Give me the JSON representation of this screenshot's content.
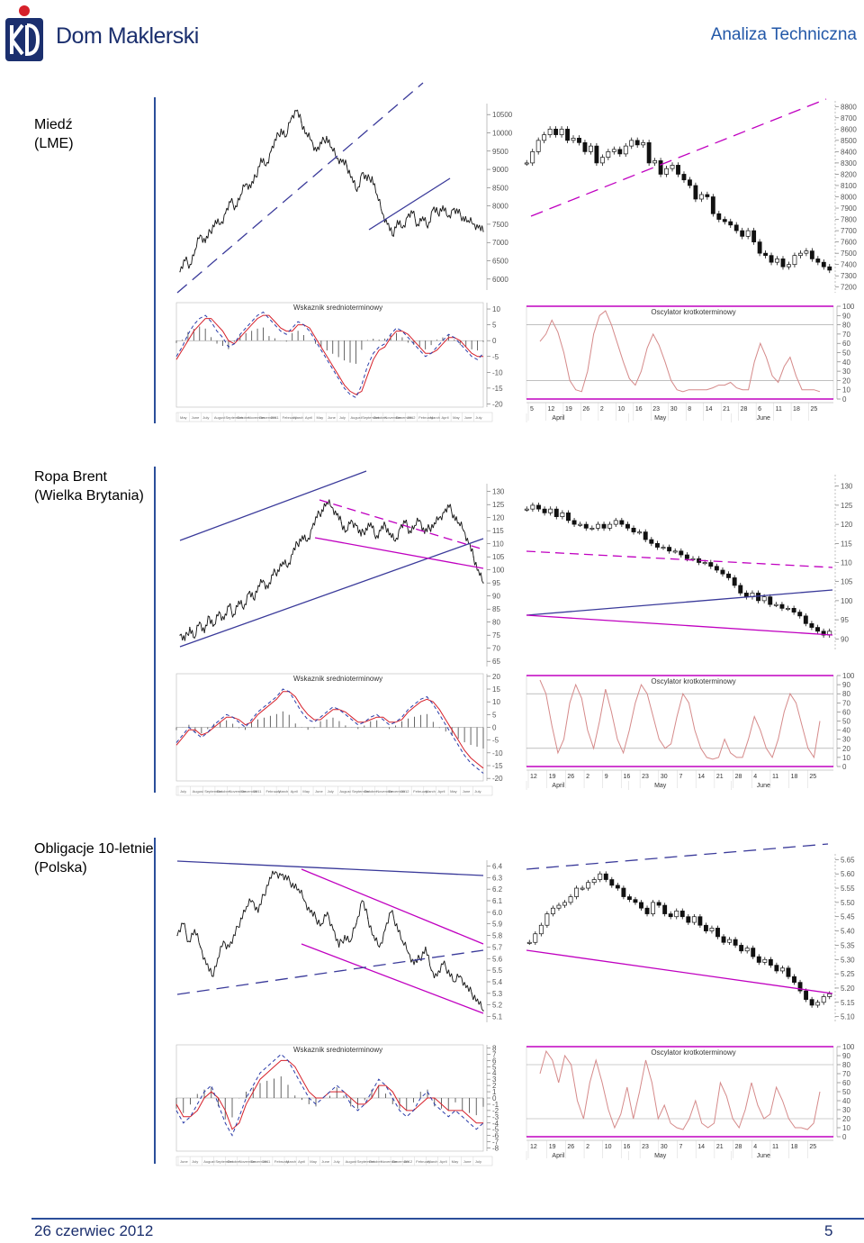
{
  "header": {
    "brand": "Dom Maklerski",
    "section_title": "Analiza Techniczna"
  },
  "footer": {
    "date": "26 czerwiec 2012",
    "page": "5"
  },
  "colors": {
    "brand_blue": "#1b2f6e",
    "accent_red": "#d6202a",
    "magenta": "#c000c0",
    "trend_blue": "#3a3a9a"
  },
  "panel_titles": {
    "macd": "Wskaznik srednioterminowy",
    "stoch": "Oscylator krotkoterminowy"
  },
  "chart_data": [
    {
      "type": "line",
      "name": "copper-long",
      "instrument": "Miedź",
      "instrument_sub": "(LME)",
      "ylim": [
        5700,
        10800
      ],
      "y_ticks": [
        "10500",
        "10000",
        "9500",
        "9000",
        "8500",
        "8000",
        "7500",
        "7000",
        "6500",
        "6000"
      ],
      "y_tick_values": [
        10500,
        10000,
        9500,
        9000,
        8500,
        8000,
        7500,
        7000,
        6500,
        6000
      ],
      "points": [
        6200,
        6500,
        6400,
        6800,
        7200,
        7000,
        7300,
        7600,
        7500,
        7800,
        8100,
        8000,
        8300,
        8600,
        8500,
        8800,
        9300,
        9100,
        9500,
        9800,
        10100,
        9900,
        10400,
        10600,
        10300,
        10000,
        9800,
        9500,
        9700,
        9900,
        9600,
        9300,
        9200,
        9100,
        8800,
        8400,
        8900,
        8700,
        8800,
        8300,
        7800,
        7500,
        7200,
        7600,
        7400,
        7700,
        7800,
        7500,
        7700,
        7400,
        7900,
        7800,
        8000,
        7700,
        7900,
        7800,
        7700,
        7600,
        7500,
        7400,
        7300
      ]
    },
    {
      "type": "candlestick",
      "name": "copper-short",
      "ylim": [
        7150,
        8850
      ],
      "y_ticks": [
        "8800",
        "8700",
        "8600",
        "8500",
        "8400",
        "8300",
        "8200",
        "8100",
        "8000",
        "7900",
        "7800",
        "7700",
        "7600",
        "7500",
        "7400",
        "7300",
        "7200"
      ],
      "y_tick_values": [
        8800,
        8700,
        8600,
        8500,
        8400,
        8300,
        8200,
        8100,
        8000,
        7900,
        7800,
        7700,
        7600,
        7500,
        7400,
        7300,
        7200
      ],
      "closes": [
        8300,
        8400,
        8500,
        8550,
        8600,
        8550,
        8600,
        8500,
        8520,
        8480,
        8400,
        8450,
        8300,
        8350,
        8400,
        8420,
        8380,
        8450,
        8500,
        8460,
        8480,
        8300,
        8320,
        8200,
        8250,
        8280,
        8200,
        8150,
        8100,
        7980,
        8020,
        8000,
        7850,
        7800,
        7780,
        7750,
        7700,
        7650,
        7700,
        7600,
        7500,
        7480,
        7420,
        7450,
        7380,
        7400,
        7480,
        7500,
        7520,
        7450,
        7420,
        7380,
        7350
      ]
    },
    {
      "type": "line",
      "name": "copper-macd",
      "ylim": [
        -21,
        12
      ],
      "y_ticks": [
        "10",
        "5",
        "0",
        "-5",
        "-10",
        "-15",
        "-20"
      ],
      "y_tick_values": [
        10,
        5,
        0,
        -5,
        -10,
        -15,
        -20
      ],
      "x_ticks": [
        "May",
        "June",
        "July",
        "August",
        "September",
        "October",
        "November",
        "December",
        "2011",
        "February",
        "March",
        "April",
        "May",
        "June",
        "July",
        "August",
        "September",
        "October",
        "November",
        "December",
        "2012",
        "February",
        "March",
        "April",
        "May",
        "June",
        "July"
      ],
      "macd": [
        -5,
        -2,
        2,
        5,
        7,
        8,
        6,
        3,
        1,
        -2,
        -1,
        2,
        4,
        6,
        8,
        9,
        7,
        5,
        3,
        2,
        4,
        6,
        5,
        3,
        0,
        -3,
        -6,
        -9,
        -12,
        -15,
        -17,
        -18,
        -14,
        -8,
        -4,
        -2,
        -1,
        2,
        4,
        3,
        1,
        -1,
        -3,
        -5,
        -4,
        -2,
        0,
        2,
        1,
        -1,
        -3,
        -5,
        -6,
        -4
      ],
      "signal": [
        -6,
        -3,
        0,
        3,
        5,
        7,
        7,
        5,
        3,
        0,
        -1,
        1,
        3,
        5,
        7,
        8,
        8,
        6,
        4,
        3,
        3,
        5,
        5,
        4,
        1,
        -2,
        -5,
        -8,
        -11,
        -14,
        -16,
        -17,
        -16,
        -11,
        -6,
        -3,
        -2,
        1,
        3,
        3,
        2,
        0,
        -2,
        -4,
        -4,
        -3,
        -1,
        1,
        1,
        0,
        -2,
        -4,
        -5,
        -5
      ]
    },
    {
      "type": "line",
      "name": "copper-stoch",
      "ylim": [
        0,
        100
      ],
      "y_ticks": [
        "100",
        "90",
        "80",
        "70",
        "60",
        "50",
        "40",
        "30",
        "20",
        "10",
        "0"
      ],
      "y_tick_values": [
        100,
        90,
        80,
        70,
        60,
        50,
        40,
        30,
        20,
        10,
        0
      ],
      "x_ticks": [
        "5",
        "12",
        "19",
        "26",
        "2",
        "10",
        "16",
        "23",
        "30",
        "8",
        "14",
        "21",
        "28",
        "6",
        "11",
        "18",
        "25"
      ],
      "month_labels": [
        "April",
        "May",
        "June"
      ],
      "points": [
        62,
        70,
        85,
        72,
        50,
        20,
        10,
        8,
        30,
        70,
        90,
        95,
        80,
        60,
        40,
        22,
        15,
        30,
        55,
        70,
        58,
        40,
        20,
        10,
        8,
        10,
        10,
        10,
        10,
        12,
        15,
        15,
        18,
        12,
        10,
        10,
        40,
        60,
        45,
        25,
        18,
        35,
        45,
        25,
        10,
        10,
        10,
        8
      ]
    },
    {
      "type": "line",
      "name": "brent-long",
      "instrument": "Ropa Brent",
      "instrument_sub": "(Wielka Brytania)",
      "ylim": [
        63,
        133
      ],
      "y_ticks": [
        "130",
        "125",
        "120",
        "115",
        "110",
        "105",
        "100",
        "95",
        "90",
        "85",
        "80",
        "75",
        "70",
        "65"
      ],
      "y_tick_values": [
        130,
        125,
        120,
        115,
        110,
        105,
        100,
        95,
        90,
        85,
        80,
        75,
        70,
        65
      ],
      "points": [
        75,
        73,
        78,
        74,
        80,
        76,
        82,
        79,
        84,
        81,
        86,
        83,
        88,
        85,
        91,
        89,
        94,
        96,
        93,
        98,
        100,
        103,
        101,
        106,
        110,
        113,
        111,
        116,
        120,
        123,
        126,
        124,
        121,
        118,
        115,
        119,
        117,
        113,
        116,
        118,
        112,
        115,
        117,
        114,
        111,
        116,
        118,
        115,
        117,
        119,
        114,
        116,
        118,
        120,
        122,
        124,
        121,
        118,
        115,
        110,
        105,
        100,
        95
      ]
    },
    {
      "type": "candlestick",
      "name": "brent-short",
      "ylim": [
        87,
        133
      ],
      "y_ticks": [
        "130",
        "125",
        "120",
        "115",
        "110",
        "105",
        "100",
        "95",
        "90"
      ],
      "y_tick_values": [
        130,
        125,
        120,
        115,
        110,
        105,
        100,
        95,
        90
      ],
      "closes": [
        124,
        125,
        124,
        123,
        124,
        122,
        123,
        121,
        120,
        120,
        119,
        119,
        120,
        119,
        120,
        121,
        120,
        119,
        118,
        118,
        116,
        115,
        114,
        114,
        113,
        113,
        112,
        111,
        111,
        110,
        110,
        109,
        108,
        107,
        106,
        104,
        102,
        101,
        102,
        100,
        101,
        99,
        99,
        98,
        98,
        97,
        96,
        94,
        93,
        92,
        91,
        92
      ]
    },
    {
      "type": "line",
      "name": "brent-macd",
      "ylim": [
        -21,
        21
      ],
      "y_ticks": [
        "20",
        "15",
        "10",
        "5",
        "0",
        "-5",
        "-10",
        "-15",
        "-20"
      ],
      "y_tick_values": [
        20,
        15,
        10,
        5,
        0,
        -5,
        -10,
        -15,
        -20
      ],
      "x_ticks": [
        "July",
        "August",
        "September",
        "October",
        "November",
        "December",
        "2011",
        "February",
        "March",
        "April",
        "May",
        "June",
        "July",
        "August",
        "September",
        "October",
        "November",
        "December",
        "2012",
        "February",
        "March",
        "April",
        "May",
        "June",
        "July"
      ],
      "macd": [
        -6,
        -3,
        0,
        -2,
        -4,
        -2,
        1,
        3,
        5,
        4,
        2,
        0,
        3,
        6,
        8,
        10,
        12,
        15,
        14,
        10,
        6,
        3,
        2,
        4,
        6,
        8,
        7,
        5,
        3,
        1,
        2,
        4,
        5,
        3,
        1,
        2,
        4,
        7,
        9,
        11,
        12,
        9,
        5,
        1,
        -3,
        -7,
        -11,
        -14,
        -16,
        -18
      ],
      "signal": [
        -7,
        -4,
        -1,
        -1,
        -3,
        -2,
        0,
        2,
        4,
        4,
        3,
        1,
        2,
        5,
        7,
        9,
        11,
        14,
        14,
        12,
        8,
        5,
        3,
        3,
        5,
        7,
        7,
        6,
        4,
        2,
        2,
        3,
        4,
        4,
        2,
        2,
        3,
        6,
        8,
        10,
        11,
        10,
        7,
        3,
        -1,
        -5,
        -9,
        -12,
        -14,
        -16
      ]
    },
    {
      "type": "line",
      "name": "brent-stoch",
      "ylim": [
        0,
        100
      ],
      "y_ticks": [
        "100",
        "90",
        "80",
        "70",
        "60",
        "50",
        "40",
        "30",
        "20",
        "10",
        "0"
      ],
      "y_tick_values": [
        100,
        90,
        80,
        70,
        60,
        50,
        40,
        30,
        20,
        10,
        0
      ],
      "x_ticks": [
        "12",
        "19",
        "26",
        "2",
        "9",
        "16",
        "23",
        "30",
        "7",
        "14",
        "21",
        "28",
        "4",
        "11",
        "18",
        "25"
      ],
      "month_labels": [
        "April",
        "May",
        "June"
      ],
      "points": [
        95,
        80,
        45,
        15,
        30,
        70,
        90,
        75,
        40,
        20,
        50,
        85,
        60,
        30,
        15,
        40,
        70,
        90,
        80,
        55,
        30,
        20,
        25,
        55,
        80,
        70,
        40,
        20,
        10,
        8,
        10,
        30,
        15,
        10,
        10,
        30,
        55,
        40,
        20,
        10,
        30,
        60,
        80,
        70,
        45,
        20,
        10,
        50
      ]
    },
    {
      "type": "line",
      "name": "bonds-long",
      "instrument": "Obligacje 10-letnie",
      "instrument_sub": "(Polska)",
      "ylim": [
        5.05,
        6.45
      ],
      "y_ticks": [
        "6.4",
        "6.3",
        "6.2",
        "6.1",
        "6.0",
        "5.9",
        "5.8",
        "5.7",
        "5.6",
        "5.5",
        "5.4",
        "5.3",
        "5.2",
        "5.1"
      ],
      "y_tick_values": [
        6.4,
        6.3,
        6.2,
        6.1,
        6.0,
        5.9,
        5.8,
        5.7,
        5.6,
        5.5,
        5.4,
        5.3,
        5.2,
        5.1
      ],
      "points": [
        5.8,
        5.9,
        5.75,
        5.85,
        5.7,
        5.55,
        5.45,
        5.6,
        5.75,
        5.7,
        5.8,
        5.95,
        6.05,
        6.1,
        6.0,
        6.15,
        6.3,
        6.35,
        6.32,
        6.28,
        6.25,
        6.2,
        6.1,
        6.0,
        5.95,
        5.9,
        6.0,
        5.85,
        5.7,
        5.8,
        5.75,
        5.9,
        6.1,
        5.95,
        5.8,
        5.7,
        5.85,
        6.0,
        5.9,
        5.75,
        5.65,
        5.55,
        5.6,
        5.7,
        5.5,
        5.45,
        5.55,
        5.5,
        5.4,
        5.45,
        5.35,
        5.3,
        5.25,
        5.15
      ]
    },
    {
      "type": "candlestick",
      "name": "bonds-short",
      "ylim": [
        5.08,
        5.67
      ],
      "y_ticks": [
        "5.65",
        "5.60",
        "5.55",
        "5.50",
        "5.45",
        "5.40",
        "5.35",
        "5.30",
        "5.25",
        "5.20",
        "5.15",
        "5.10"
      ],
      "y_tick_values": [
        5.65,
        5.6,
        5.55,
        5.5,
        5.45,
        5.4,
        5.35,
        5.3,
        5.25,
        5.2,
        5.15,
        5.1
      ],
      "closes": [
        5.36,
        5.39,
        5.42,
        5.46,
        5.48,
        5.49,
        5.5,
        5.52,
        5.55,
        5.55,
        5.57,
        5.58,
        5.6,
        5.58,
        5.56,
        5.55,
        5.52,
        5.51,
        5.5,
        5.48,
        5.46,
        5.5,
        5.49,
        5.46,
        5.45,
        5.47,
        5.45,
        5.43,
        5.45,
        5.42,
        5.4,
        5.41,
        5.38,
        5.36,
        5.37,
        5.35,
        5.33,
        5.34,
        5.31,
        5.29,
        5.3,
        5.28,
        5.26,
        5.27,
        5.24,
        5.22,
        5.19,
        5.16,
        5.14,
        5.15,
        5.17,
        5.18
      ]
    },
    {
      "type": "line",
      "name": "bonds-macd",
      "ylim": [
        -8.5,
        8.5
      ],
      "y_ticks": [
        "8",
        "7",
        "6",
        "5",
        "4",
        "3",
        "2",
        "1",
        "0",
        "-1",
        "-2",
        "-3",
        "-4",
        "-5",
        "-6",
        "-7",
        "-8"
      ],
      "y_tick_values": [
        8,
        7,
        6,
        5,
        4,
        3,
        2,
        1,
        0,
        -1,
        -2,
        -3,
        -4,
        -5,
        -6,
        -7,
        -8
      ],
      "x_ticks": [
        "June",
        "July",
        "August",
        "September",
        "October",
        "November",
        "December",
        "2011",
        "February",
        "March",
        "April",
        "May",
        "June",
        "July",
        "August",
        "September",
        "October",
        "November",
        "December",
        "2012",
        "February",
        "March",
        "April",
        "May",
        "June",
        "July"
      ],
      "macd": [
        -2,
        -4,
        -3,
        -1,
        1,
        2,
        -1,
        -4,
        -6,
        -3,
        0,
        2,
        4,
        5,
        6,
        7,
        6,
        4,
        2,
        0,
        -1,
        0,
        1,
        2,
        1,
        -1,
        -2,
        -1,
        1,
        3,
        2,
        0,
        -2,
        -3,
        -2,
        0,
        1,
        -1,
        -2,
        -3,
        -2,
        -3,
        -4,
        -5,
        -4
      ],
      "signal": [
        -1,
        -3,
        -3,
        -2,
        0,
        1,
        0,
        -2,
        -5,
        -4,
        -1,
        1,
        3,
        4,
        5,
        6,
        6,
        5,
        3,
        1,
        0,
        0,
        1,
        1,
        1,
        0,
        -1,
        -1,
        0,
        2,
        2,
        1,
        -1,
        -2,
        -2,
        -1,
        0,
        0,
        -1,
        -2,
        -2,
        -2,
        -3,
        -4,
        -4
      ]
    },
    {
      "type": "line",
      "name": "bonds-stoch",
      "ylim": [
        0,
        100
      ],
      "y_ticks": [
        "100",
        "90",
        "80",
        "70",
        "60",
        "50",
        "40",
        "30",
        "20",
        "10",
        "0"
      ],
      "y_tick_values": [
        100,
        90,
        80,
        70,
        60,
        50,
        40,
        30,
        20,
        10,
        0
      ],
      "x_ticks": [
        "12",
        "19",
        "26",
        "2",
        "10",
        "16",
        "23",
        "30",
        "7",
        "14",
        "21",
        "28",
        "4",
        "11",
        "18",
        "25"
      ],
      "month_labels": [
        "April",
        "May",
        "June"
      ],
      "points": [
        70,
        95,
        85,
        60,
        90,
        80,
        40,
        20,
        60,
        85,
        60,
        30,
        10,
        25,
        55,
        20,
        50,
        85,
        60,
        20,
        35,
        15,
        10,
        8,
        20,
        40,
        15,
        10,
        15,
        60,
        45,
        20,
        10,
        30,
        60,
        35,
        20,
        25,
        55,
        40,
        20,
        10,
        10,
        8,
        15,
        50
      ]
    }
  ]
}
